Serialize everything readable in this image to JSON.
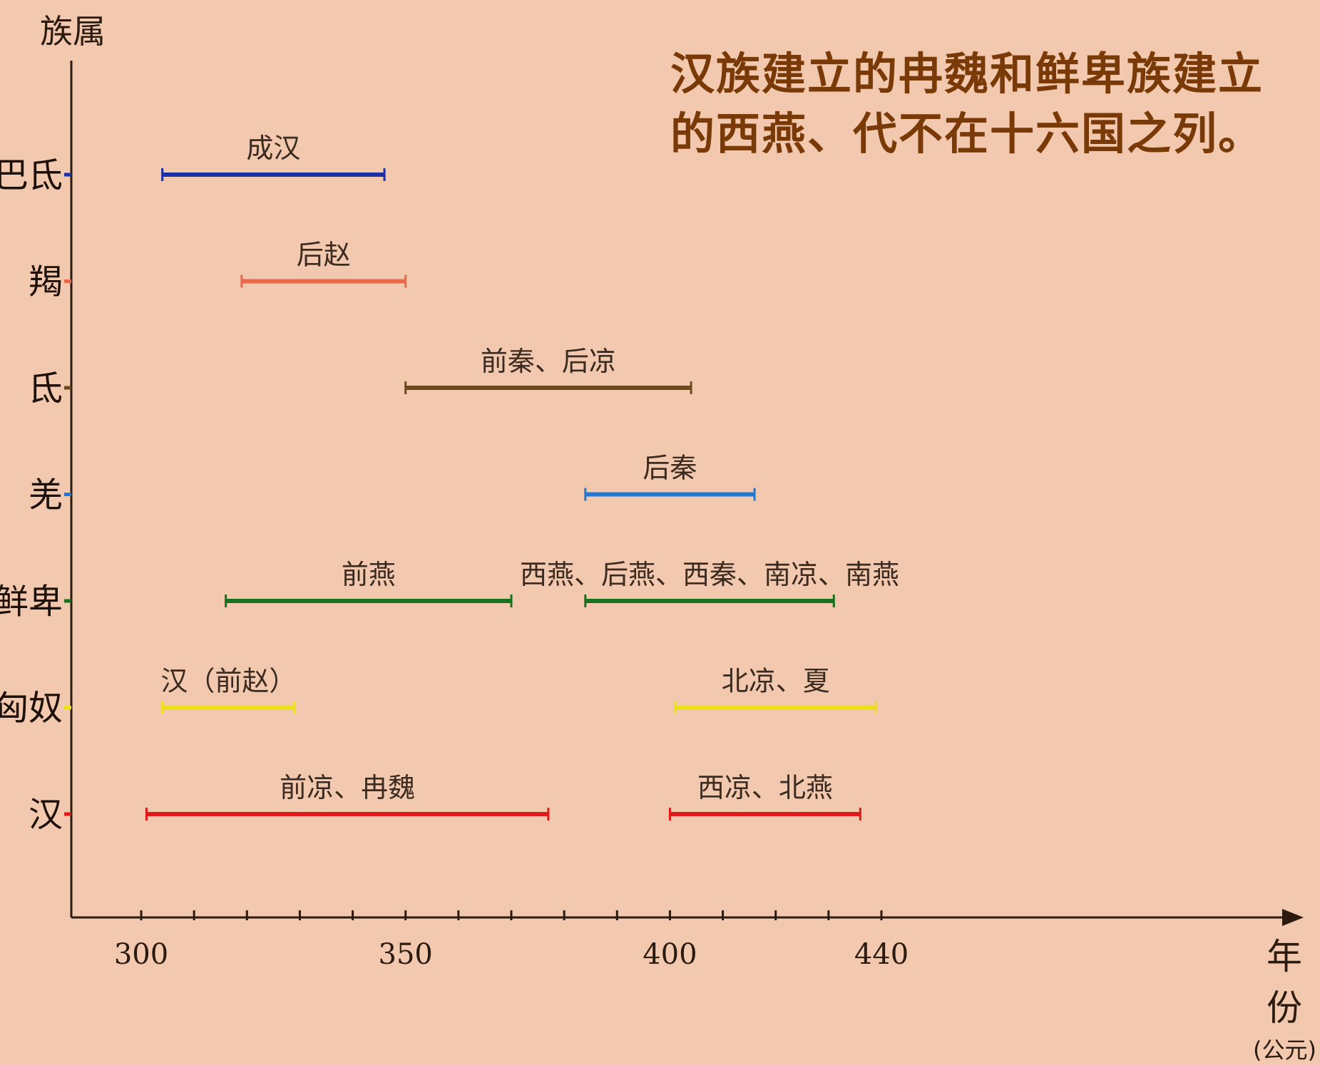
{
  "note": {
    "line1": "汉族建立的冉魏和鲜卑族建立",
    "line2": "的西燕、代不在十六国之列。"
  },
  "chart_data": {
    "type": "timeline",
    "title": "",
    "ylabel": "族属",
    "xlabel": "年份",
    "xlabel_unit": "(公元)",
    "xlim": [
      290,
      446
    ],
    "xticks_labeled": [
      300,
      350,
      400,
      440
    ],
    "xtick_step": 10,
    "categories": [
      "巴氐",
      "羯",
      "氐",
      "羌",
      "鲜卑",
      "匈奴",
      "汉"
    ],
    "category_colors": [
      "#1a2fa8",
      "#e8684a",
      "#6b4a1e",
      "#1f78d6",
      "#17721f",
      "#ecdf1c",
      "#e01a1a"
    ],
    "bars": [
      {
        "category": "巴氐",
        "label": "成汉",
        "start": 304,
        "end": 346,
        "color": "#1a2fa8"
      },
      {
        "category": "羯",
        "label": "后赵",
        "start": 319,
        "end": 350,
        "color": "#e8684a"
      },
      {
        "category": "氐",
        "label": "前秦、后凉",
        "start": 350,
        "end": 404,
        "color": "#6b4a1e"
      },
      {
        "category": "羌",
        "label": "后秦",
        "start": 384,
        "end": 416,
        "color": "#1f78d6"
      },
      {
        "category": "鲜卑",
        "label": "前燕",
        "start": 316,
        "end": 370,
        "color": "#17721f"
      },
      {
        "category": "鲜卑",
        "label": "西燕、后燕、西秦、南凉、南燕",
        "start": 384,
        "end": 431,
        "color": "#17721f"
      },
      {
        "category": "匈奴",
        "label": "汉（前赵）",
        "start": 304,
        "end": 329,
        "color": "#ecdf1c"
      },
      {
        "category": "匈奴",
        "label": "北凉、夏",
        "start": 401,
        "end": 439,
        "color": "#ecdf1c"
      },
      {
        "category": "汉",
        "label": "前凉、冉魏",
        "start": 301,
        "end": 377,
        "color": "#e01a1a"
      },
      {
        "category": "汉",
        "label": "西凉、北燕",
        "start": 400,
        "end": 436,
        "color": "#e01a1a"
      }
    ]
  }
}
